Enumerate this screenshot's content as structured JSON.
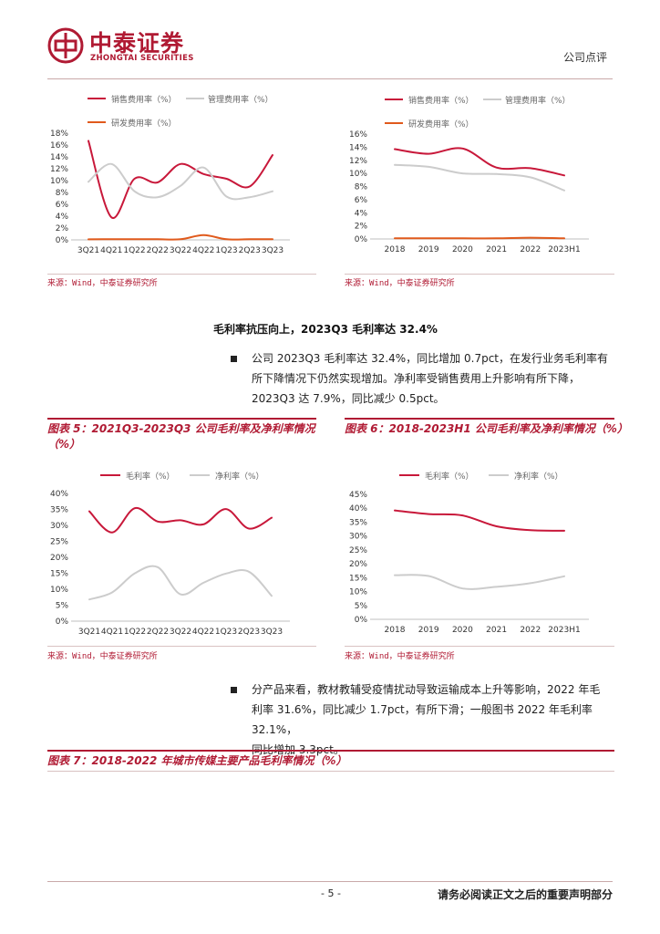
{
  "header": {
    "company_cn": "中泰证券",
    "company_en": "ZHONGTAI SECURITIES",
    "doc_type": "公司点评"
  },
  "colors": {
    "brand": "#b01a33",
    "series_red": "#c8183a",
    "series_gray": "#cccccc",
    "series_orange": "#e05a1c"
  },
  "charts": {
    "fig3": {
      "legend": [
        "销售费用率（%）",
        "管理费用率（%）",
        "研发费用率（%）"
      ],
      "source": "来源：Wind，中泰证券研究所"
    },
    "fig4": {
      "legend": [
        "销售费用率（%）",
        "管理费用率（%）",
        "研发费用率（%）"
      ],
      "source": "来源：Wind，中泰证券研究所"
    },
    "fig5": {
      "title": "图表 5：2021Q3-2023Q3 公司毛利率及净利率情况（%）",
      "legend": [
        "毛利率（%）",
        "净利率（%）"
      ],
      "source": "来源：Wind，中泰证券研究所"
    },
    "fig6": {
      "title": "图表 6：2018-2023H1 公司毛利率及净利率情况（%）",
      "legend": [
        "毛利率（%）",
        "净利率（%）"
      ],
      "source": "来源：Wind，中泰证券研究所"
    }
  },
  "chart_data": [
    {
      "id": "fig3",
      "type": "line",
      "categories": [
        "3Q21",
        "4Q21",
        "1Q22",
        "2Q22",
        "3Q22",
        "4Q22",
        "1Q23",
        "2Q23",
        "3Q23"
      ],
      "yticks": [
        "0%",
        "2%",
        "4%",
        "6%",
        "8%",
        "10%",
        "12%",
        "14%",
        "16%",
        "18%"
      ],
      "ylim": [
        0,
        18
      ],
      "series": [
        {
          "name": "销售费用率（%）",
          "color": "#c8183a",
          "values": [
            16.7,
            3.8,
            10.3,
            9.7,
            12.8,
            11.1,
            10.3,
            9.0,
            14.3
          ]
        },
        {
          "name": "管理费用率（%）",
          "color": "#cccccc",
          "values": [
            9.8,
            12.8,
            8.2,
            7.2,
            9.1,
            12.2,
            7.3,
            7.2,
            8.2
          ]
        },
        {
          "name": "研发费用率（%）",
          "color": "#e05a1c",
          "values": [
            0.1,
            0.1,
            0.1,
            0.1,
            0.1,
            0.8,
            0.1,
            0.1,
            0.1
          ]
        }
      ]
    },
    {
      "id": "fig4",
      "type": "line",
      "categories": [
        "2018",
        "2019",
        "2020",
        "2021",
        "2022",
        "2023H1"
      ],
      "yticks": [
        "0%",
        "2%",
        "4%",
        "6%",
        "8%",
        "10%",
        "12%",
        "14%",
        "16%"
      ],
      "ylim": [
        0,
        16
      ],
      "series": [
        {
          "name": "销售费用率（%）",
          "color": "#c8183a",
          "values": [
            13.7,
            13.0,
            13.8,
            10.9,
            10.8,
            9.7
          ]
        },
        {
          "name": "管理费用率（%）",
          "color": "#cccccc",
          "values": [
            11.3,
            11.0,
            10.0,
            9.9,
            9.4,
            7.4
          ]
        },
        {
          "name": "研发费用率（%）",
          "color": "#e05a1c",
          "values": [
            0.1,
            0.1,
            0.1,
            0.1,
            0.2,
            0.1
          ]
        }
      ]
    },
    {
      "id": "fig5",
      "type": "line",
      "categories": [
        "3Q21",
        "4Q21",
        "1Q22",
        "2Q22",
        "3Q22",
        "4Q22",
        "1Q23",
        "2Q23",
        "3Q23"
      ],
      "yticks": [
        "0%",
        "5%",
        "10%",
        "15%",
        "20%",
        "25%",
        "30%",
        "35%",
        "40%"
      ],
      "ylim": [
        0,
        40
      ],
      "series": [
        {
          "name": "毛利率（%）",
          "color": "#c8183a",
          "values": [
            34.4,
            27.8,
            35.4,
            31.2,
            31.6,
            30.3,
            35.1,
            29.0,
            32.4
          ]
        },
        {
          "name": "净利率（%）",
          "color": "#cccccc",
          "values": [
            6.8,
            9.0,
            15.0,
            16.9,
            8.4,
            12.0,
            14.9,
            15.5,
            7.9
          ]
        }
      ]
    },
    {
      "id": "fig6",
      "type": "line",
      "categories": [
        "2018",
        "2019",
        "2020",
        "2021",
        "2022",
        "2023H1"
      ],
      "yticks": [
        "0%",
        "5%",
        "10%",
        "15%",
        "20%",
        "25%",
        "30%",
        "35%",
        "40%",
        "45%"
      ],
      "ylim": [
        0,
        45
      ],
      "series": [
        {
          "name": "毛利率（%）",
          "color": "#c8183a",
          "values": [
            39.2,
            37.9,
            37.4,
            33.5,
            32.1,
            31.9
          ]
        },
        {
          "name": "净利率（%）",
          "color": "#cccccc",
          "values": [
            15.9,
            15.6,
            11.1,
            11.7,
            13.0,
            15.5
          ]
        }
      ]
    }
  ],
  "section": {
    "heading": "毛利率抗压向上，2023Q3 毛利率达 32.4%",
    "para1_lines": [
      "公司 2023Q3 毛利率达 32.4%，同比增加 0.7pct，在发行业务毛利率有",
      "所下降情况下仍然实现增加。净利率受销售费用上升影响有所下降，",
      "2023Q3 达 7.9%，同比减少 0.5pct。"
    ],
    "para2_lines": [
      "分产品来看，教材教辅受疫情扰动导致运输成本上升等影响，2022 年毛",
      "利率 31.6%，同比减少 1.7pct，有所下滑；一般图书 2022 年毛利率 32.1%，",
      "同比增加 3.3pct。"
    ],
    "fig7_title": "图表 7：2018-2022 年城市传媒主要产品毛利率情况（%）"
  },
  "footer": {
    "page": "- 5 -",
    "note": "请务必阅读正文之后的重要声明部分"
  }
}
